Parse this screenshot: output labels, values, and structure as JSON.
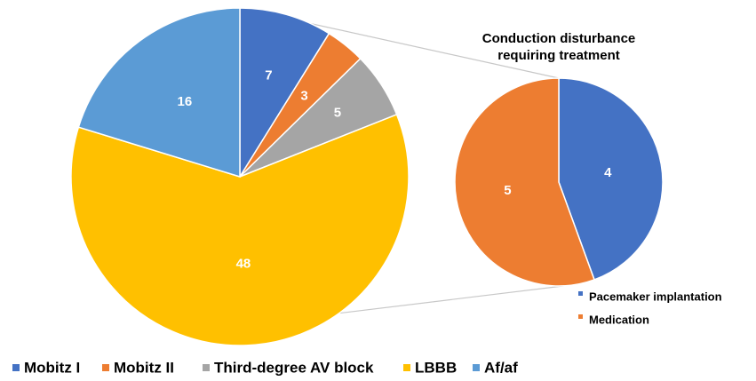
{
  "chart_data": [
    {
      "type": "pie",
      "title": "",
      "categories": [
        "Mobitz I",
        "Mobitz II",
        "Third-degree AV block",
        "LBBB",
        "Af/af"
      ],
      "values": [
        7,
        3,
        5,
        48,
        16
      ],
      "colors": [
        "#4472C4",
        "#ED7D31",
        "#A5A5A5",
        "#FFC000",
        "#5B9BD5"
      ],
      "legend_position": "bottom"
    },
    {
      "type": "pie",
      "title": "Conduction disturbance requiring treatment",
      "title_lines": [
        "Conduction disturbance",
        "requiring treatment"
      ],
      "categories": [
        "Pacemaker implantation",
        "Medication"
      ],
      "values": [
        4,
        5
      ],
      "colors": [
        "#4472C4",
        "#ED7D31"
      ],
      "legend_position": "bottom-right"
    }
  ]
}
